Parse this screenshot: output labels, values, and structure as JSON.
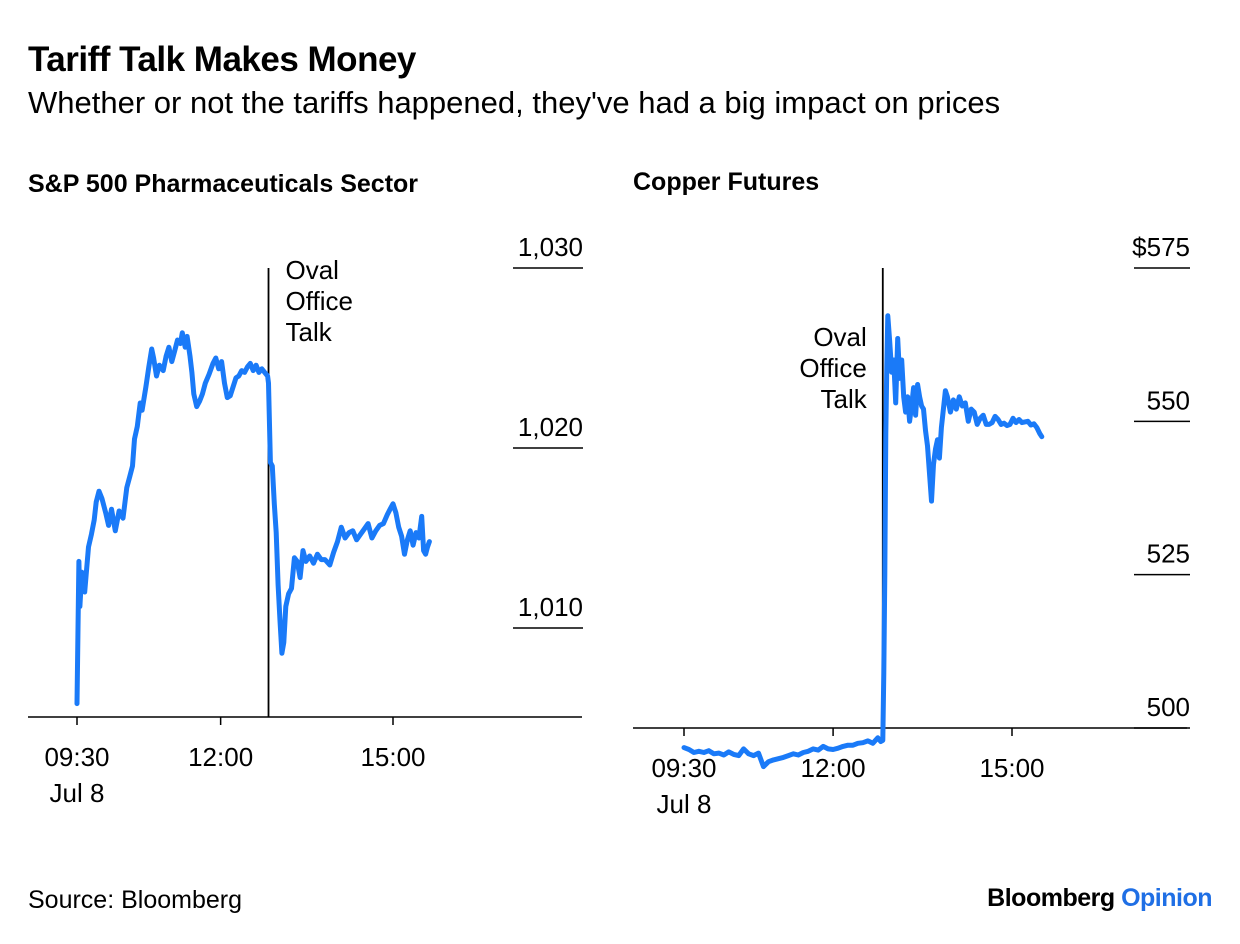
{
  "title": "Tariff Talk Makes Money",
  "subtitle": "Whether or not the tariffs happened, they've had a big impact on prices",
  "source": "Source: Bloomberg",
  "brand": {
    "name": "Bloomberg",
    "section": "Opinion"
  },
  "colors": {
    "line": "#1a7af8",
    "brand_accent": "#1f6fe5",
    "axis": "#000000"
  },
  "chart_data": [
    {
      "type": "line",
      "title": "S&P 500 Pharmaceuticals Sector",
      "xlabel": "",
      "ylabel": "",
      "ylim": [
        1005,
        1033
      ],
      "y_ticks": [
        {
          "value": 1030,
          "label": "1,030"
        },
        {
          "value": 1020,
          "label": "1,020"
        },
        {
          "value": 1010,
          "label": "1,010"
        }
      ],
      "x_ticks": [
        {
          "value": "09:30",
          "label": "09:30",
          "sublabel": "Jul 8"
        },
        {
          "value": "12:00",
          "label": "12:00"
        },
        {
          "value": "15:00",
          "label": "15:00"
        }
      ],
      "annotation": {
        "x": "12:50",
        "text": [
          "Oval",
          "Office",
          "Talk"
        ],
        "side": "right"
      },
      "grid": false,
      "series": [
        {
          "values": [
            [
              "09:30",
              1005.8
            ],
            [
              "09:32",
              1013.7
            ],
            [
              "09:33",
              1011.2
            ],
            [
              "09:35",
              1013.1
            ],
            [
              "09:38",
              1012.0
            ],
            [
              "09:42",
              1014.5
            ],
            [
              "09:45",
              1015.2
            ],
            [
              "09:48",
              1016.0
            ],
            [
              "09:50",
              1017.0
            ],
            [
              "09:53",
              1017.6
            ],
            [
              "09:56",
              1017.2
            ],
            [
              "10:00",
              1016.4
            ],
            [
              "10:03",
              1015.7
            ],
            [
              "10:06",
              1016.6
            ],
            [
              "10:10",
              1015.4
            ],
            [
              "10:14",
              1016.5
            ],
            [
              "10:18",
              1016.1
            ],
            [
              "10:22",
              1017.8
            ],
            [
              "10:25",
              1018.4
            ],
            [
              "10:28",
              1019.0
            ],
            [
              "10:30",
              1020.5
            ],
            [
              "10:33",
              1021.2
            ],
            [
              "10:36",
              1022.5
            ],
            [
              "10:38",
              1022.1
            ],
            [
              "10:42",
              1023.4
            ],
            [
              "10:45",
              1024.5
            ],
            [
              "10:48",
              1025.5
            ],
            [
              "10:50",
              1025.0
            ],
            [
              "10:53",
              1024.0
            ],
            [
              "10:56",
              1024.6
            ],
            [
              "11:00",
              1024.3
            ],
            [
              "11:03",
              1025.1
            ],
            [
              "11:06",
              1025.6
            ],
            [
              "11:09",
              1024.8
            ],
            [
              "11:12",
              1025.4
            ],
            [
              "11:15",
              1026.0
            ],
            [
              "11:18",
              1025.8
            ],
            [
              "11:20",
              1026.4
            ],
            [
              "11:23",
              1025.6
            ],
            [
              "11:25",
              1026.2
            ],
            [
              "11:28",
              1025.1
            ],
            [
              "11:30",
              1024.2
            ],
            [
              "11:32",
              1023.0
            ],
            [
              "11:35",
              1022.3
            ],
            [
              "11:38",
              1022.6
            ],
            [
              "11:41",
              1023.0
            ],
            [
              "11:44",
              1023.6
            ],
            [
              "11:48",
              1024.1
            ],
            [
              "11:52",
              1024.7
            ],
            [
              "11:55",
              1025.0
            ],
            [
              "11:58",
              1024.4
            ],
            [
              "12:01",
              1024.8
            ],
            [
              "12:04",
              1023.6
            ],
            [
              "12:07",
              1022.8
            ],
            [
              "12:10",
              1022.9
            ],
            [
              "12:13",
              1023.4
            ],
            [
              "12:16",
              1023.9
            ],
            [
              "12:19",
              1024.0
            ],
            [
              "12:22",
              1024.3
            ],
            [
              "12:25",
              1024.2
            ],
            [
              "12:28",
              1024.5
            ],
            [
              "12:31",
              1024.7
            ],
            [
              "12:34",
              1024.3
            ],
            [
              "12:37",
              1024.6
            ],
            [
              "12:40",
              1024.2
            ],
            [
              "12:43",
              1024.4
            ],
            [
              "12:46",
              1024.2
            ],
            [
              "12:49",
              1024.0
            ],
            [
              "12:50",
              1023.6
            ],
            [
              "12:52",
              1019.2
            ],
            [
              "12:54",
              1019.0
            ],
            [
              "12:56",
              1016.9
            ],
            [
              "12:58",
              1015.3
            ],
            [
              "13:00",
              1012.4
            ],
            [
              "13:02",
              1010.4
            ],
            [
              "13:04",
              1008.6
            ],
            [
              "13:06",
              1009.2
            ],
            [
              "13:08",
              1011.2
            ],
            [
              "13:11",
              1011.9
            ],
            [
              "13:14",
              1012.2
            ],
            [
              "13:17",
              1013.9
            ],
            [
              "13:20",
              1013.7
            ],
            [
              "13:23",
              1012.8
            ],
            [
              "13:26",
              1014.3
            ],
            [
              "13:29",
              1013.7
            ],
            [
              "13:33",
              1014.0
            ],
            [
              "13:37",
              1013.6
            ],
            [
              "13:41",
              1014.1
            ],
            [
              "13:45",
              1013.8
            ],
            [
              "13:49",
              1013.8
            ],
            [
              "13:54",
              1013.5
            ],
            [
              "13:58",
              1014.2
            ],
            [
              "14:02",
              1014.8
            ],
            [
              "14:06",
              1015.6
            ],
            [
              "14:10",
              1015.0
            ],
            [
              "14:14",
              1015.3
            ],
            [
              "14:18",
              1015.4
            ],
            [
              "14:22",
              1014.9
            ],
            [
              "14:26",
              1015.2
            ],
            [
              "14:30",
              1015.5
            ],
            [
              "14:34",
              1015.8
            ],
            [
              "14:38",
              1015.0
            ],
            [
              "14:42",
              1015.4
            ],
            [
              "14:46",
              1015.7
            ],
            [
              "14:50",
              1015.8
            ],
            [
              "14:54",
              1016.3
            ],
            [
              "14:57",
              1016.6
            ],
            [
              "15:00",
              1016.9
            ],
            [
              "15:03",
              1016.4
            ],
            [
              "15:06",
              1015.6
            ],
            [
              "15:09",
              1015.1
            ],
            [
              "15:12",
              1014.1
            ],
            [
              "15:15",
              1014.9
            ],
            [
              "15:18",
              1015.4
            ],
            [
              "15:21",
              1014.6
            ],
            [
              "15:24",
              1015.3
            ],
            [
              "15:27",
              1015.0
            ],
            [
              "15:30",
              1016.2
            ],
            [
              "15:32",
              1014.3
            ],
            [
              "15:34",
              1014.1
            ],
            [
              "15:36",
              1014.5
            ],
            [
              "15:38",
              1014.8
            ]
          ]
        }
      ]
    },
    {
      "type": "line",
      "title": "Copper Futures",
      "xlabel": "",
      "ylabel": "",
      "ylim": [
        495,
        580
      ],
      "y_ticks": [
        {
          "value": 575,
          "label": "$575"
        },
        {
          "value": 550,
          "label": "550"
        },
        {
          "value": 525,
          "label": "525"
        },
        {
          "value": 500,
          "label": "500"
        }
      ],
      "x_ticks": [
        {
          "value": "09:30",
          "label": "09:30",
          "sublabel": "Jul 8"
        },
        {
          "value": "12:00",
          "label": "12:00"
        },
        {
          "value": "15:00",
          "label": "15:00"
        }
      ],
      "annotation": {
        "x": "12:50",
        "text": [
          "Oval",
          "Office",
          "Talk"
        ],
        "side": "left"
      },
      "grid": false,
      "series": [
        {
          "values": [
            [
              "09:30",
              496.8
            ],
            [
              "09:35",
              496.5
            ],
            [
              "09:40",
              496.0
            ],
            [
              "09:45",
              496.2
            ],
            [
              "09:50",
              496.0
            ],
            [
              "09:55",
              496.3
            ],
            [
              "10:00",
              495.8
            ],
            [
              "10:05",
              495.9
            ],
            [
              "10:10",
              495.6
            ],
            [
              "10:15",
              496.1
            ],
            [
              "10:20",
              495.7
            ],
            [
              "10:25",
              495.5
            ],
            [
              "10:30",
              496.6
            ],
            [
              "10:35",
              495.8
            ],
            [
              "10:40",
              495.5
            ],
            [
              "10:45",
              495.9
            ],
            [
              "10:50",
              493.7
            ],
            [
              "10:55",
              494.5
            ],
            [
              "11:00",
              494.8
            ],
            [
              "11:05",
              495.0
            ],
            [
              "11:10",
              495.2
            ],
            [
              "11:15",
              495.5
            ],
            [
              "11:20",
              495.8
            ],
            [
              "11:25",
              495.6
            ],
            [
              "11:30",
              496.0
            ],
            [
              "11:35",
              496.2
            ],
            [
              "11:40",
              496.6
            ],
            [
              "11:45",
              496.4
            ],
            [
              "11:50",
              497.0
            ],
            [
              "11:55",
              496.6
            ],
            [
              "12:00",
              496.5
            ],
            [
              "12:05",
              496.7
            ],
            [
              "12:10",
              497.0
            ],
            [
              "12:15",
              497.2
            ],
            [
              "12:20",
              497.2
            ],
            [
              "12:25",
              497.5
            ],
            [
              "12:30",
              497.6
            ],
            [
              "12:35",
              497.9
            ],
            [
              "12:40",
              497.5
            ],
            [
              "12:45",
              498.4
            ],
            [
              "12:48",
              497.8
            ],
            [
              "12:50",
              498.0
            ],
            [
              "12:51",
              509.0
            ],
            [
              "12:52",
              525.0
            ],
            [
              "12:53",
              548.0
            ],
            [
              "12:54",
              559.0
            ],
            [
              "12:55",
              567.2
            ],
            [
              "12:57",
              563.0
            ],
            [
              "12:59",
              558.0
            ],
            [
              "13:01",
              560.0
            ],
            [
              "13:03",
              553.0
            ],
            [
              "13:05",
              563.5
            ],
            [
              "13:07",
              557.0
            ],
            [
              "13:09",
              560.0
            ],
            [
              "13:11",
              554.0
            ],
            [
              "13:13",
              551.5
            ],
            [
              "13:15",
              554.0
            ],
            [
              "13:17",
              550.0
            ],
            [
              "13:19",
              552.5
            ],
            [
              "13:21",
              555.5
            ],
            [
              "13:23",
              551.0
            ],
            [
              "13:25",
              556.0
            ],
            [
              "13:27",
              554.0
            ],
            [
              "13:29",
              552.5
            ],
            [
              "13:31",
              552.0
            ],
            [
              "13:33",
              548.5
            ],
            [
              "13:35",
              546.0
            ],
            [
              "13:37",
              541.5
            ],
            [
              "13:39",
              537.0
            ],
            [
              "13:41",
              543.0
            ],
            [
              "13:43",
              545.5
            ],
            [
              "13:45",
              547.0
            ],
            [
              "13:47",
              544.0
            ],
            [
              "13:49",
              549.0
            ],
            [
              "13:51",
              552.0
            ],
            [
              "13:53",
              555.0
            ],
            [
              "13:55",
              554.0
            ],
            [
              "13:58",
              551.5
            ],
            [
              "14:01",
              553.5
            ],
            [
              "14:04",
              552.0
            ],
            [
              "14:07",
              554.0
            ],
            [
              "14:10",
              552.5
            ],
            [
              "14:13",
              553.0
            ],
            [
              "14:16",
              550.0
            ],
            [
              "14:19",
              552.0
            ],
            [
              "14:22",
              551.5
            ],
            [
              "14:25",
              549.5
            ],
            [
              "14:28",
              550.5
            ],
            [
              "14:31",
              551.0
            ],
            [
              "14:34",
              549.5
            ],
            [
              "14:37",
              549.5
            ],
            [
              "14:40",
              549.8
            ],
            [
              "14:43",
              550.8
            ],
            [
              "14:46",
              550.3
            ],
            [
              "14:49",
              549.5
            ],
            [
              "14:52",
              549.7
            ],
            [
              "14:55",
              549.3
            ],
            [
              "14:58",
              549.5
            ],
            [
              "15:01",
              550.5
            ],
            [
              "15:04",
              549.8
            ],
            [
              "15:07",
              550.3
            ],
            [
              "15:10",
              549.8
            ],
            [
              "15:13",
              549.9
            ],
            [
              "15:16",
              550.0
            ],
            [
              "15:19",
              549.4
            ],
            [
              "15:22",
              549.6
            ],
            [
              "15:25",
              549.0
            ],
            [
              "15:28",
              548.0
            ],
            [
              "15:30",
              547.5
            ]
          ]
        }
      ]
    }
  ]
}
